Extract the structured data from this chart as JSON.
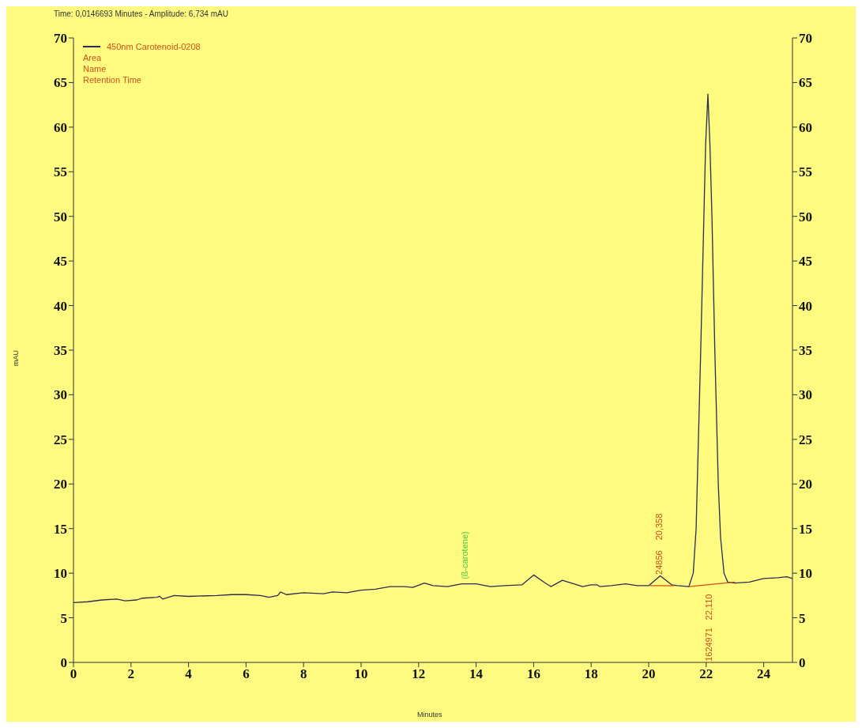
{
  "chart_data": {
    "type": "line",
    "xlabel": "Minutes",
    "ylabel": "mAU",
    "annotations": [
      "Time: 0,0146693 Minutes - Amplitude: 6,734 mAU",
      "Area",
      "Name",
      "Retention Time",
      "(ß-carotene)",
      "24856",
      "20,358",
      "22,110",
      "1624971"
    ],
    "series": [
      {
        "name": "450nm Carotenoid-0208",
        "color": "#2b2b55",
        "x": [
          0,
          0.5,
          1,
          1.5,
          1.8,
          2.2,
          2.4,
          2.9,
          3.0,
          3.1,
          3.5,
          4,
          5,
          5.5,
          6,
          6.5,
          6.8,
          7.1,
          7.2,
          7.4,
          8,
          8.7,
          9,
          9.5,
          10,
          10.5,
          11,
          11.5,
          11.8,
          12.2,
          12.5,
          13,
          13.5,
          14,
          14.5,
          15,
          15.6,
          16,
          16.4,
          16.6,
          17,
          17.4,
          17.7,
          18,
          18.2,
          18.3,
          18.7,
          19.2,
          19.6,
          20,
          20.4,
          20.8,
          21,
          21.4,
          21.55,
          21.65,
          21.69,
          21.81,
          21.92,
          21.98,
          22.06,
          22.13,
          22.2,
          22.3,
          22.42,
          22.5,
          22.62,
          22.75,
          23,
          23.5,
          24,
          24.5,
          24.8,
          25
        ],
        "values": [
          6.7,
          6.8,
          7.0,
          7.1,
          6.9,
          7.0,
          7.2,
          7.3,
          7.4,
          7.1,
          7.5,
          7.4,
          7.5,
          7.6,
          7.6,
          7.5,
          7.3,
          7.5,
          7.9,
          7.6,
          7.8,
          7.7,
          7.9,
          7.8,
          8.1,
          8.2,
          8.5,
          8.5,
          8.4,
          8.9,
          8.6,
          8.5,
          8.8,
          8.8,
          8.5,
          8.6,
          8.7,
          9.8,
          8.9,
          8.5,
          9.2,
          8.8,
          8.5,
          8.7,
          8.7,
          8.5,
          8.6,
          8.8,
          8.6,
          8.6,
          9.7,
          8.7,
          8.6,
          8.5,
          10,
          15,
          20,
          35,
          50,
          58,
          63.7,
          58,
          50,
          35,
          20,
          14,
          10,
          9.0,
          8.9,
          9.0,
          9.4,
          9.5,
          9.6,
          9.4
        ]
      },
      {
        "color": "#d0501a",
        "x": [
          20.05,
          20.9
        ],
        "values": [
          8.6,
          8.6
        ]
      },
      {
        "color": "#d0501a",
        "x": [
          21.4,
          23
        ],
        "values": [
          8.5,
          9.0
        ]
      }
    ],
    "xlim": [
      0,
      25
    ],
    "xticks": [
      0,
      2,
      4,
      6,
      8,
      10,
      12,
      14,
      16,
      18,
      20,
      22,
      24
    ],
    "ylim": [
      0,
      70
    ],
    "yticks": [
      0,
      5,
      10,
      15,
      20,
      25,
      30,
      35,
      40,
      45,
      50,
      55,
      60,
      65,
      70
    ],
    "y2lim": [
      0,
      70
    ],
    "y2ticks": [
      0,
      5,
      10,
      15,
      20,
      25,
      30,
      35,
      40,
      45,
      50,
      55,
      60,
      65,
      70
    ],
    "grid": false,
    "legend": "top left",
    "marker": "none",
    "line_style": "solid"
  }
}
